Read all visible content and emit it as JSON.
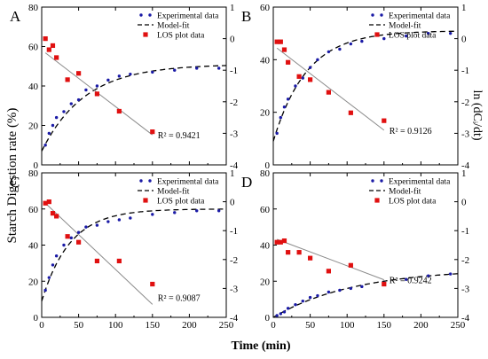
{
  "figure": {
    "ylabel_left": "Starch Digestion rate (%)",
    "xlabel": "Time (min)",
    "ylabel_right": "ln (dCᵢ/dt)"
  },
  "colors": {
    "experimental": "#1a1aa6",
    "model_fit": "#000000",
    "los": "#e01010",
    "los_fit_line": "#8a8a8a",
    "axis": "#000000"
  },
  "chart_data": [
    {
      "type": "scatter",
      "panel_label": "A",
      "xlim": [
        0,
        250
      ],
      "ylim_left": [
        0,
        80
      ],
      "ylim_right": [
        -4,
        1
      ],
      "x_ticks": [
        0,
        50,
        100,
        150,
        200,
        250
      ],
      "y_ticks_left": [
        0,
        20,
        40,
        60,
        80
      ],
      "y_ticks_right": [
        -4,
        -3,
        -2,
        -1,
        0,
        1
      ],
      "legend": [
        "Experimental data",
        "Model-fit",
        "LOS plot data"
      ],
      "legend_position": "top-right",
      "series": [
        {
          "name": "Experimental data",
          "marker": "dot",
          "axis": "left",
          "x": [
            5,
            10,
            15,
            20,
            30,
            40,
            50,
            60,
            75,
            90,
            105,
            120,
            150,
            180,
            210,
            240
          ],
          "y": [
            10,
            16,
            20,
            24,
            27,
            31,
            33,
            38,
            40,
            43,
            45,
            46,
            47,
            48,
            49,
            49
          ]
        },
        {
          "name": "Model-fit",
          "style": "dashed",
          "axis": "left",
          "model": {
            "c_inf": 51,
            "c0": 7,
            "k": 0.017
          },
          "x_range": [
            0,
            250
          ]
        },
        {
          "name": "LOS plot data",
          "marker": "square",
          "axis": "right",
          "x": [
            5,
            10,
            15,
            20,
            35,
            50,
            75,
            105,
            150
          ],
          "y": [
            0.0,
            -0.35,
            -0.22,
            -0.6,
            -1.3,
            -1.1,
            -1.75,
            -2.3,
            -2.95
          ],
          "fit_line": {
            "x": [
              5,
              150
            ],
            "y": [
              -0.45,
              -3.05
            ]
          }
        }
      ],
      "annotation": "R² = 0.9421"
    },
    {
      "type": "scatter",
      "panel_label": "B",
      "xlim": [
        0,
        250
      ],
      "ylim_left": [
        0,
        60
      ],
      "ylim_right": [
        -4,
        1
      ],
      "x_ticks": [
        0,
        50,
        100,
        150,
        200,
        250
      ],
      "y_ticks_left": [
        0,
        20,
        40,
        60
      ],
      "y_ticks_right": [
        -4,
        -3,
        -2,
        -1,
        0,
        1
      ],
      "legend": [
        "Experimental data",
        "Model-fit",
        "LOS plot data"
      ],
      "legend_position": "top-right",
      "series": [
        {
          "name": "Experimental data",
          "marker": "dot",
          "axis": "left",
          "x": [
            5,
            10,
            15,
            20,
            30,
            40,
            50,
            60,
            75,
            90,
            105,
            120,
            150,
            180,
            210,
            240
          ],
          "y": [
            12,
            18,
            22,
            25,
            30,
            33,
            37,
            40,
            43,
            44,
            46,
            47,
            48,
            49,
            50,
            50
          ]
        },
        {
          "name": "Model-fit",
          "style": "dashed",
          "axis": "left",
          "model": {
            "c_inf": 51,
            "c0": 9,
            "k": 0.022
          },
          "x_range": [
            0,
            250
          ]
        },
        {
          "name": "LOS plot data",
          "marker": "square",
          "axis": "right",
          "x": [
            5,
            10,
            15,
            20,
            35,
            50,
            75,
            105,
            150
          ],
          "y": [
            -0.1,
            -0.1,
            -0.35,
            -0.75,
            -1.2,
            -1.3,
            -1.7,
            -2.35,
            -2.6
          ],
          "fit_line": {
            "x": [
              5,
              150
            ],
            "y": [
              -0.3,
              -2.9
            ]
          }
        }
      ],
      "annotation": "R² = 0.9126"
    },
    {
      "type": "scatter",
      "panel_label": "C",
      "xlim": [
        0,
        250
      ],
      "ylim_left": [
        0,
        80
      ],
      "ylim_right": [
        -4,
        1
      ],
      "x_ticks": [
        0,
        50,
        100,
        150,
        200,
        250
      ],
      "y_ticks_left": [
        0,
        20,
        40,
        60,
        80
      ],
      "y_ticks_right": [
        -4,
        -3,
        -2,
        -1,
        0,
        1
      ],
      "legend": [
        "Experimental data",
        "Model-fit",
        "LOS plot data"
      ],
      "legend_position": "top-right",
      "series": [
        {
          "name": "Experimental data",
          "marker": "dot",
          "axis": "left",
          "x": [
            5,
            10,
            15,
            20,
            30,
            40,
            50,
            60,
            75,
            90,
            105,
            120,
            150,
            180,
            210,
            240
          ],
          "y": [
            15,
            22,
            29,
            34,
            40,
            44,
            47,
            50,
            51,
            53,
            54,
            55,
            57,
            58,
            59,
            59
          ]
        },
        {
          "name": "Model-fit",
          "style": "dashed",
          "axis": "left",
          "model": {
            "c_inf": 60,
            "c0": 9,
            "k": 0.026
          },
          "x_range": [
            0,
            250
          ]
        },
        {
          "name": "LOS plot data",
          "marker": "square",
          "axis": "right",
          "x": [
            5,
            10,
            15,
            20,
            35,
            50,
            75,
            105,
            150
          ],
          "y": [
            -0.05,
            0.0,
            -0.4,
            -0.5,
            -1.2,
            -1.4,
            -2.05,
            -2.05,
            -2.85
          ],
          "fit_line": {
            "x": [
              5,
              150
            ],
            "y": [
              -0.05,
              -3.55
            ]
          }
        }
      ],
      "annotation": "R² = 0.9087"
    },
    {
      "type": "scatter",
      "panel_label": "D",
      "xlim": [
        0,
        250
      ],
      "ylim_left": [
        0,
        80
      ],
      "ylim_right": [
        -4,
        1
      ],
      "x_ticks": [
        0,
        50,
        100,
        150,
        200,
        250
      ],
      "y_ticks_left": [
        0,
        20,
        40,
        60,
        80
      ],
      "y_ticks_right": [
        -4,
        -3,
        -2,
        -1,
        0,
        1
      ],
      "legend": [
        "Experimental data",
        "Model-fit",
        "LOS plot data"
      ],
      "legend_position": "top-right",
      "series": [
        {
          "name": "Experimental data",
          "marker": "dot",
          "axis": "left",
          "x": [
            5,
            10,
            15,
            20,
            30,
            40,
            50,
            60,
            75,
            90,
            105,
            120,
            150,
            180,
            210,
            240
          ],
          "y": [
            1,
            2,
            3,
            5,
            7,
            9,
            11,
            12,
            14,
            15,
            16,
            17,
            19,
            21,
            23,
            24
          ]
        },
        {
          "name": "Model-fit",
          "style": "dashed",
          "axis": "left",
          "model": {
            "c_inf": 27,
            "c0": 0,
            "k": 0.009
          },
          "x_range": [
            0,
            250
          ]
        },
        {
          "name": "LOS plot data",
          "marker": "square",
          "axis": "right",
          "x": [
            5,
            10,
            15,
            20,
            35,
            50,
            75,
            105,
            150
          ],
          "y": [
            -1.4,
            -1.4,
            -1.35,
            -1.75,
            -1.75,
            -1.95,
            -2.4,
            -2.2,
            -2.85
          ],
          "fit_line": {
            "x": [
              5,
              150
            ],
            "y": [
              -1.3,
              -2.7
            ]
          }
        }
      ],
      "annotation": "R² = 0.9242"
    }
  ]
}
